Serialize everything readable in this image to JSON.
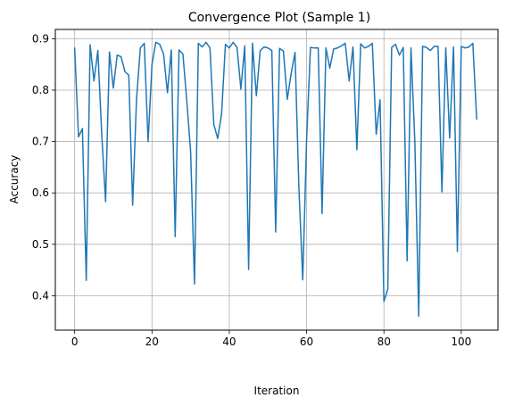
{
  "chart_data": {
    "type": "line",
    "title": "Convergence Plot (Sample 1)",
    "xlabel": "Iteration",
    "ylabel": "Accuracy",
    "xlim": [
      -5,
      109.5
    ],
    "ylim": [
      0.333,
      0.918
    ],
    "xticks": [
      0,
      20,
      40,
      60,
      80,
      100
    ],
    "yticks": [
      0.4,
      0.5,
      0.6,
      0.7,
      0.8,
      0.9
    ],
    "grid": true,
    "line_color": "#1f77b4",
    "series": [
      {
        "x": [
          0,
          1,
          2,
          3,
          4,
          5,
          6,
          7,
          8,
          9,
          10,
          11,
          12,
          13,
          14,
          15,
          16,
          17,
          18,
          19,
          20,
          21,
          22,
          23,
          24,
          25,
          26,
          27,
          28,
          29,
          30,
          31,
          32,
          33,
          34,
          35,
          36,
          37,
          38,
          39,
          40,
          41,
          42,
          43,
          44,
          45,
          46,
          47,
          48,
          49,
          50,
          51,
          52,
          53,
          54,
          55,
          56,
          57,
          58,
          59,
          60,
          61,
          62,
          63,
          64,
          65,
          66,
          67,
          68,
          69,
          70,
          71,
          72,
          73,
          74,
          75,
          76,
          77,
          78,
          79,
          80,
          81,
          82,
          83,
          84,
          85,
          86,
          87,
          88,
          89,
          90,
          91,
          92,
          93,
          94,
          95,
          96,
          97,
          98,
          99,
          100,
          101,
          102,
          103,
          104
        ],
        "values": [
          0.882,
          0.709,
          0.725,
          0.43,
          0.888,
          0.818,
          0.877,
          0.715,
          0.583,
          0.874,
          0.804,
          0.868,
          0.865,
          0.836,
          0.829,
          0.576,
          0.782,
          0.882,
          0.891,
          0.7,
          0.85,
          0.893,
          0.889,
          0.87,
          0.795,
          0.878,
          0.515,
          0.878,
          0.87,
          0.78,
          0.68,
          0.423,
          0.891,
          0.884,
          0.893,
          0.882,
          0.733,
          0.706,
          0.753,
          0.889,
          0.882,
          0.893,
          0.883,
          0.802,
          0.886,
          0.451,
          0.891,
          0.789,
          0.877,
          0.884,
          0.882,
          0.877,
          0.524,
          0.881,
          0.876,
          0.782,
          0.832,
          0.873,
          0.611,
          0.431,
          0.704,
          0.883,
          0.882,
          0.882,
          0.56,
          0.882,
          0.843,
          0.88,
          0.882,
          0.886,
          0.891,
          0.818,
          0.884,
          0.684,
          0.89,
          0.882,
          0.885,
          0.891,
          0.714,
          0.781,
          0.389,
          0.413,
          0.883,
          0.889,
          0.868,
          0.883,
          0.468,
          0.882,
          0.7,
          0.36,
          0.885,
          0.883,
          0.877,
          0.885,
          0.885,
          0.602,
          0.882,
          0.707,
          0.884,
          0.486,
          0.885,
          0.882,
          0.884,
          0.891,
          0.743
        ]
      }
    ]
  }
}
